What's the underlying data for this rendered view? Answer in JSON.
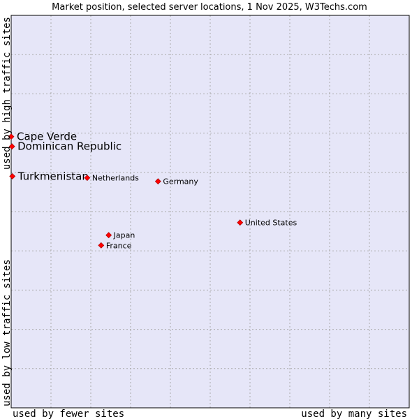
{
  "chart_data": {
    "type": "scatter",
    "title": "Market position, selected server locations, 1 Nov 2025, W3Techs.com",
    "xlabel_left": "used by fewer sites",
    "xlabel_right": "used by many sites",
    "ylabel_bottom": "used by low traffic sites",
    "ylabel_top": "used by high traffic sites",
    "xlim": [
      0,
      100
    ],
    "ylim": [
      0,
      100
    ],
    "grid": true,
    "colors": {
      "plot_background": "#e6e6f8",
      "grid": "#aaaaaa",
      "frame": "#000000",
      "point": "#ff0000",
      "point_outline": "#990000"
    },
    "points": [
      {
        "name": "Cape Verde",
        "x": 0.0,
        "y": 69.1,
        "emphasis": true
      },
      {
        "name": "Dominican Republic",
        "x": 0.2,
        "y": 66.6,
        "emphasis": true
      },
      {
        "name": "Turkmenistan",
        "x": 0.3,
        "y": 59.0,
        "emphasis": true
      },
      {
        "name": "Netherlands",
        "x": 19.1,
        "y": 58.6,
        "emphasis": false
      },
      {
        "name": "Germany",
        "x": 36.9,
        "y": 57.7,
        "emphasis": false
      },
      {
        "name": "United States",
        "x": 57.5,
        "y": 47.2,
        "emphasis": false
      },
      {
        "name": "Japan",
        "x": 24.5,
        "y": 44.0,
        "emphasis": false
      },
      {
        "name": "France",
        "x": 22.6,
        "y": 41.4,
        "emphasis": false
      }
    ]
  }
}
